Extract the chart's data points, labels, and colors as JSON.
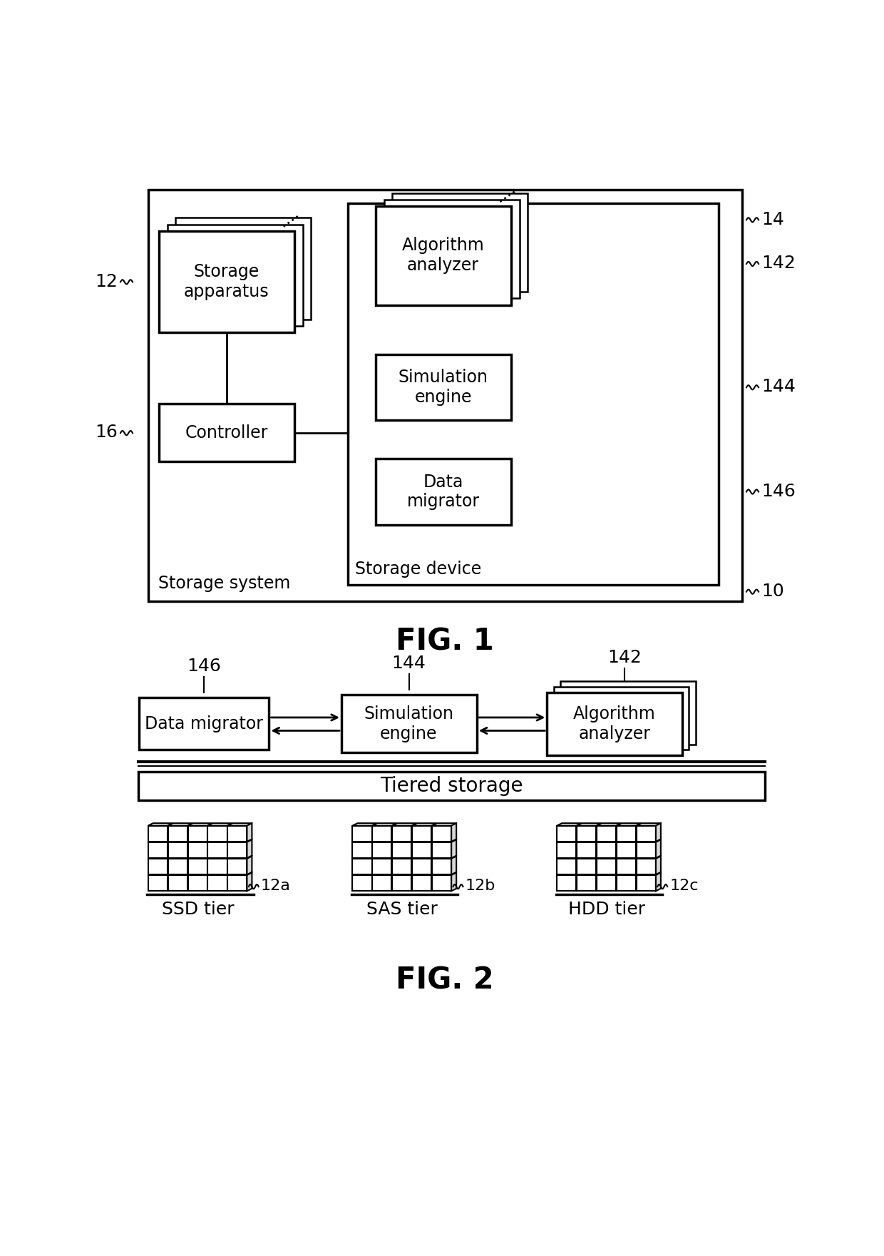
{
  "fig1": {
    "storage_system_label": "Storage system",
    "storage_device_label": "Storage device",
    "label_10": "10",
    "label_12": "12",
    "label_14": "14",
    "label_16": "16",
    "label_142": "142",
    "label_144": "144",
    "label_146": "146",
    "storage_apparatus_label": "Storage\napparatus",
    "controller_label": "Controller",
    "algorithm_analyzer_label": "Algorithm\nanalyzer",
    "simulation_engine_label": "Simulation\nengine",
    "data_migrator_label": "Data\nmigrator",
    "fig_label": "FIG. 1"
  },
  "fig2": {
    "data_migrator_label": "Data migrator",
    "simulation_engine_label": "Simulation\nengine",
    "algorithm_analyzer_label": "Algorithm\nanalyzer",
    "tiered_storage_label": "Tiered storage",
    "ssd_label": "SSD tier",
    "sas_label": "SAS tier",
    "hdd_label": "HDD tier",
    "label_146": "146",
    "label_144": "144",
    "label_142": "142",
    "label_12a": "12a",
    "label_12b": "12b",
    "label_12c": "12c",
    "fig_label": "FIG. 2"
  },
  "bg_color": "#ffffff",
  "box_color": "#000000",
  "text_color": "#000000"
}
